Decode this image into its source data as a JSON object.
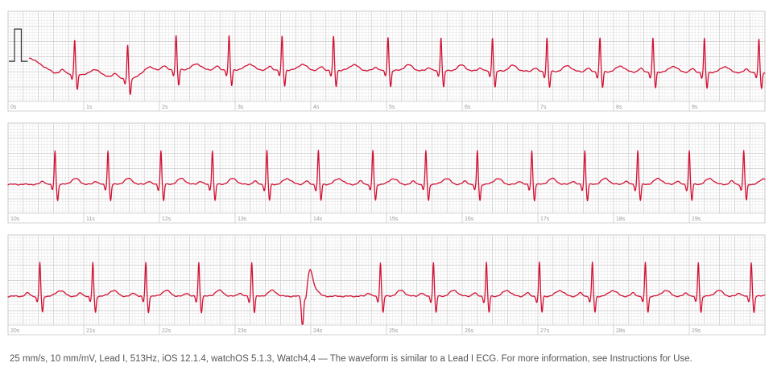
{
  "colors": {
    "trace": "#d21034",
    "grid_minor": "#e4e4e4",
    "grid_major": "#c8c8c8",
    "calibration": "#333333",
    "tick_label": "#9a9a9a"
  },
  "footer": {
    "text": "25 mm/s, 10 mm/mV, Lead I, 513Hz, iOS 12.1.4, watchOS 5.1.3, Watch4,4 — The waveform is similar to a Lead I ECG. For more information, see Instructions for Use."
  },
  "chart_data": {
    "type": "line",
    "title": "",
    "xlabel": "",
    "ylabel": "",
    "x_unit": "s",
    "y_unit": "mV",
    "grid": true,
    "strips": [
      {
        "start_s": 0,
        "end_s": 10,
        "ticks": [
          "0s",
          "1s",
          "2s",
          "3s",
          "4s",
          "5s",
          "6s",
          "7s",
          "8s",
          "9s"
        ],
        "beats_s": [
          0.88,
          1.58,
          2.22,
          2.92,
          3.62,
          4.3,
          5.02,
          5.72,
          6.4,
          7.12,
          7.82,
          8.52,
          9.2,
          9.92
        ],
        "baseline_wander": [
          [
            0.3,
            0.45
          ],
          [
            0.6,
            0.0
          ],
          [
            1.3,
            -0.1
          ],
          [
            1.6,
            -0.2
          ],
          [
            2.0,
            0.1
          ],
          [
            10,
            0.0
          ]
        ],
        "calibration_pulse": {
          "amplitude_mv": 1.0,
          "duration_s": 0.2
        }
      },
      {
        "start_s": 10,
        "end_s": 20,
        "ticks": [
          "10s",
          "11s",
          "12s",
          "13s",
          "14s",
          "15s",
          "16s",
          "17s",
          "18s",
          "19s"
        ],
        "beats_s": [
          10.62,
          11.32,
          12.02,
          12.7,
          13.42,
          14.1,
          14.82,
          15.52,
          16.2,
          16.92,
          17.62,
          18.32,
          19.0,
          19.72
        ],
        "baseline_wander": []
      },
      {
        "start_s": 20,
        "end_s": 30,
        "ticks": [
          "20s",
          "21s",
          "22s",
          "23s",
          "24s",
          "25s",
          "26s",
          "27s",
          "28s",
          "29s"
        ],
        "beats_s": [
          20.42,
          21.12,
          21.82,
          22.52,
          23.22,
          24.92,
          25.62,
          26.32,
          27.02,
          27.72,
          28.42,
          29.12,
          29.82
        ],
        "ectopic_beat_s": 23.92,
        "baseline_wander": []
      }
    ]
  }
}
